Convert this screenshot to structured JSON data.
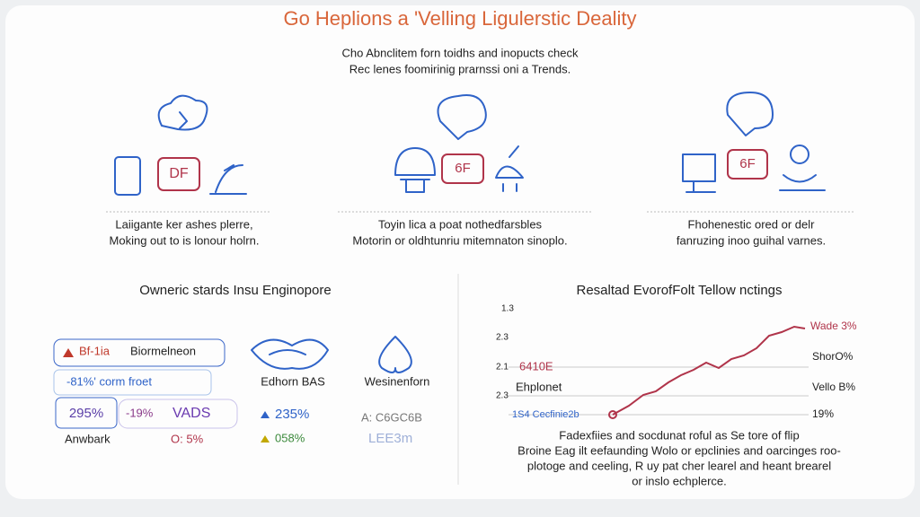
{
  "header": {
    "title": "Go Heplions a 'Velling Ligulerstic Deality",
    "subtitle_1": "Cho Abnclitem forn toidhs and inopucts check",
    "subtitle_2": "Rec lenes foomirinig prarnssi oni a Trends."
  },
  "panels": [
    {
      "lines": [
        "Laiigante ker ashes plerre,",
        "Moking out to is lonour holrn."
      ]
    },
    {
      "lines": [
        "Toyin lica a poat nothedfarsbles",
        "Motorin or oldhtunriu mitemnaton sinoplo."
      ]
    },
    {
      "lines": [
        "Fhohenestic ored or delr",
        "fanruzing inoo guihal varnes."
      ]
    }
  ],
  "left_section": {
    "title": "Owneric stards Insu Enginopore",
    "badges": [
      "Bf-1ia",
      "Biormelneon",
      "-81%' corm froet",
      "295%",
      "-19%",
      "VADS",
      "Anwbark",
      "O: 5%"
    ],
    "middle": [
      "Edhorn BAS",
      "235%",
      "058%"
    ],
    "right": [
      "Wesinenforn",
      "A: C6GC6B",
      "LEE3m"
    ]
  },
  "right_section": {
    "title": "Resaltad EvorofFolt Tellow nctings",
    "axis_labels": [
      "1.3",
      "2.3",
      "2.1",
      "2.3"
    ],
    "left_labels": [
      "6410E",
      "Ehplonet",
      "1S4 Cecfinie2b"
    ],
    "right_labels": [
      "Wade 3%",
      "ShorO%",
      "Vello B%",
      "19%"
    ],
    "caption": [
      "Fadexfiies and socdunat roful as Se tore of flip",
      "Broine Eag ilt eefaunding Wolo or epclinies and oarcinges roo-",
      "plotoge and ceeling, R uy pat cher learel and heant brearel",
      "or inslo echplerce."
    ]
  }
}
